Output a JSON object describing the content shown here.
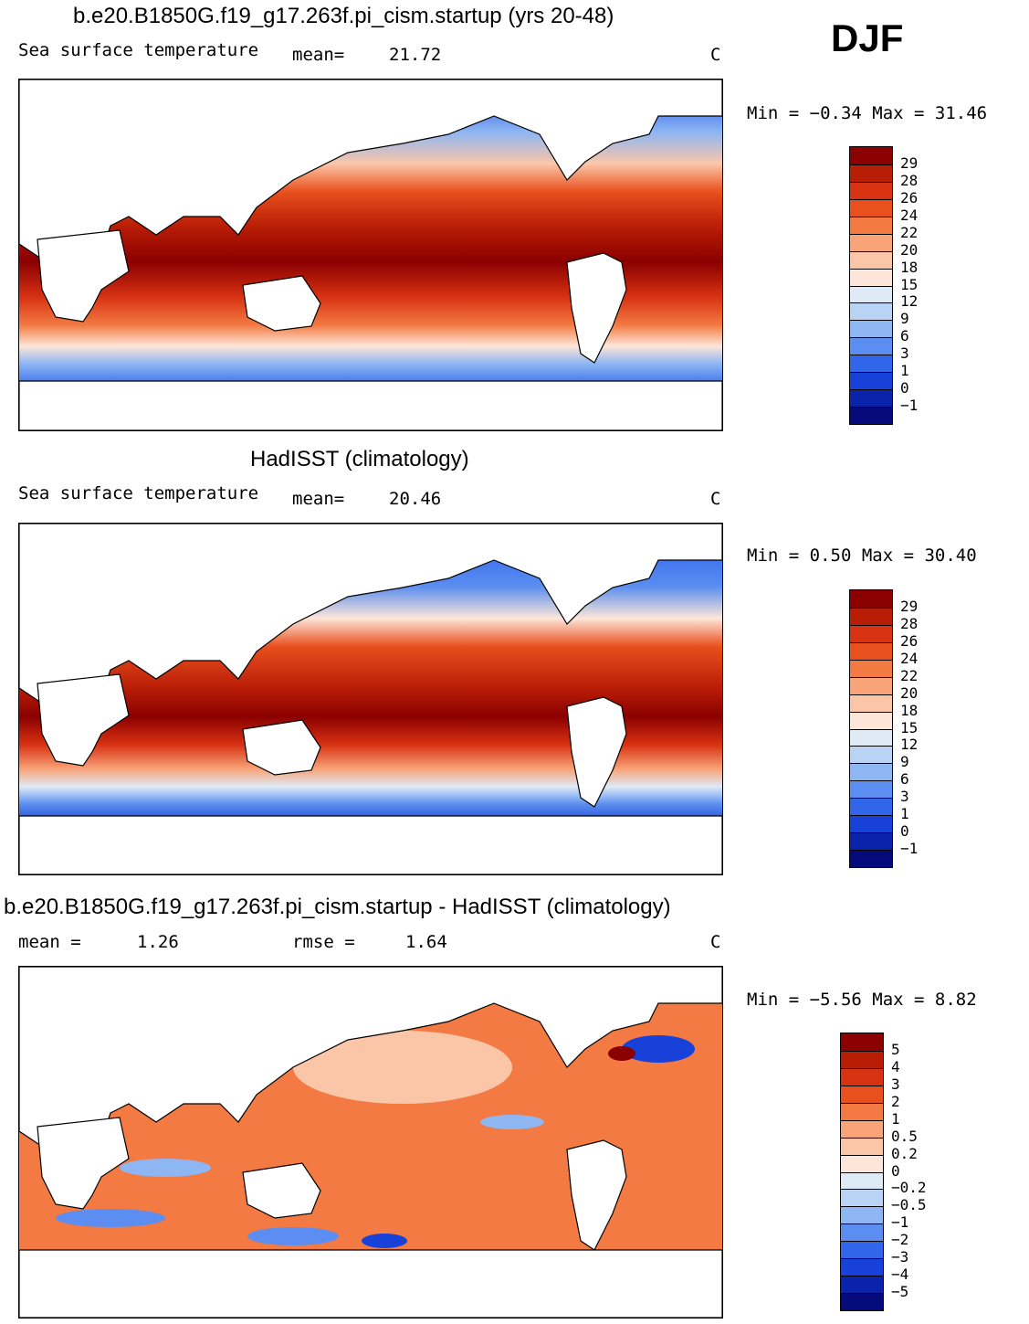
{
  "season": "DJF",
  "panels": [
    {
      "id": "model",
      "title": "b.e20.B1850G.f19_g17.263f.pi_cism.startup (yrs 20-48)",
      "variable": "Sea surface temperature",
      "stat_left": "mean=",
      "stat_left_value": "21.72",
      "units": "C",
      "minmax": "Min =   −0.34 Max =   31.46"
    },
    {
      "id": "obs",
      "title": "HadISST (climatology)",
      "variable": "Sea surface temperature",
      "stat_left": "mean=",
      "stat_left_value": "20.46",
      "units": "C",
      "minmax": "Min =    0.50 Max =   30.40"
    },
    {
      "id": "diff",
      "title": "b.e20.B1850G.f19_g17.263f.pi_cism.startup - HadISST (climatology)",
      "mean_label": "mean =",
      "mean_value": "1.26",
      "rmse_label": "rmse =",
      "rmse_value": "1.64",
      "units": "C",
      "minmax": "Min =  −5.56 Max =    8.82"
    }
  ],
  "chart_data": [
    {
      "type": "heatmap",
      "title": "b.e20.B1850G.f19_g17.263f.pi_cism.startup (yrs 20-48)",
      "variable": "Sea surface temperature",
      "units": "C",
      "mean": 21.72,
      "min": -0.34,
      "max": 31.46,
      "colorbar_levels": [
        "29",
        "28",
        "26",
        "24",
        "22",
        "20",
        "18",
        "15",
        "12",
        "9",
        "6",
        "3",
        "1",
        "0",
        "−1"
      ],
      "colorbar_colors": [
        "#8b0000",
        "#b81d06",
        "#d73212",
        "#e8501e",
        "#f37a42",
        "#f8a378",
        "#fbc6a8",
        "#fde6d9",
        "#deebf7",
        "#b9d3f5",
        "#8eb6f3",
        "#5b8ef0",
        "#3165ea",
        "#1741d8",
        "#0a23aa",
        "#050b7a"
      ]
    },
    {
      "type": "heatmap",
      "title": "HadISST (climatology)",
      "variable": "Sea surface temperature",
      "units": "C",
      "mean": 20.46,
      "min": 0.5,
      "max": 30.4,
      "colorbar_levels": [
        "29",
        "28",
        "26",
        "24",
        "22",
        "20",
        "18",
        "15",
        "12",
        "9",
        "6",
        "3",
        "1",
        "0",
        "−1"
      ],
      "colorbar_colors": [
        "#8b0000",
        "#b81d06",
        "#d73212",
        "#e8501e",
        "#f37a42",
        "#f8a378",
        "#fbc6a8",
        "#fde6d9",
        "#deebf7",
        "#b9d3f5",
        "#8eb6f3",
        "#5b8ef0",
        "#3165ea",
        "#1741d8",
        "#0a23aa",
        "#050b7a"
      ]
    },
    {
      "type": "heatmap",
      "title": "b.e20.B1850G.f19_g17.263f.pi_cism.startup - HadISST (climatology)",
      "units": "C",
      "mean": 1.26,
      "rmse": 1.64,
      "min": -5.56,
      "max": 8.82,
      "colorbar_levels": [
        "5",
        "4",
        "3",
        "2",
        "1",
        "0.5",
        "0.2",
        "0",
        "−0.2",
        "−0.5",
        "−1",
        "−2",
        "−3",
        "−4",
        "−5"
      ],
      "colorbar_colors": [
        "#8b0000",
        "#b81d06",
        "#d73212",
        "#e8501e",
        "#f37a42",
        "#f8a378",
        "#fbc6a8",
        "#fde6d9",
        "#deebf7",
        "#b9d3f5",
        "#8eb6f3",
        "#5b8ef0",
        "#3165ea",
        "#1741d8",
        "#0a23aa",
        "#050b7a"
      ]
    }
  ]
}
